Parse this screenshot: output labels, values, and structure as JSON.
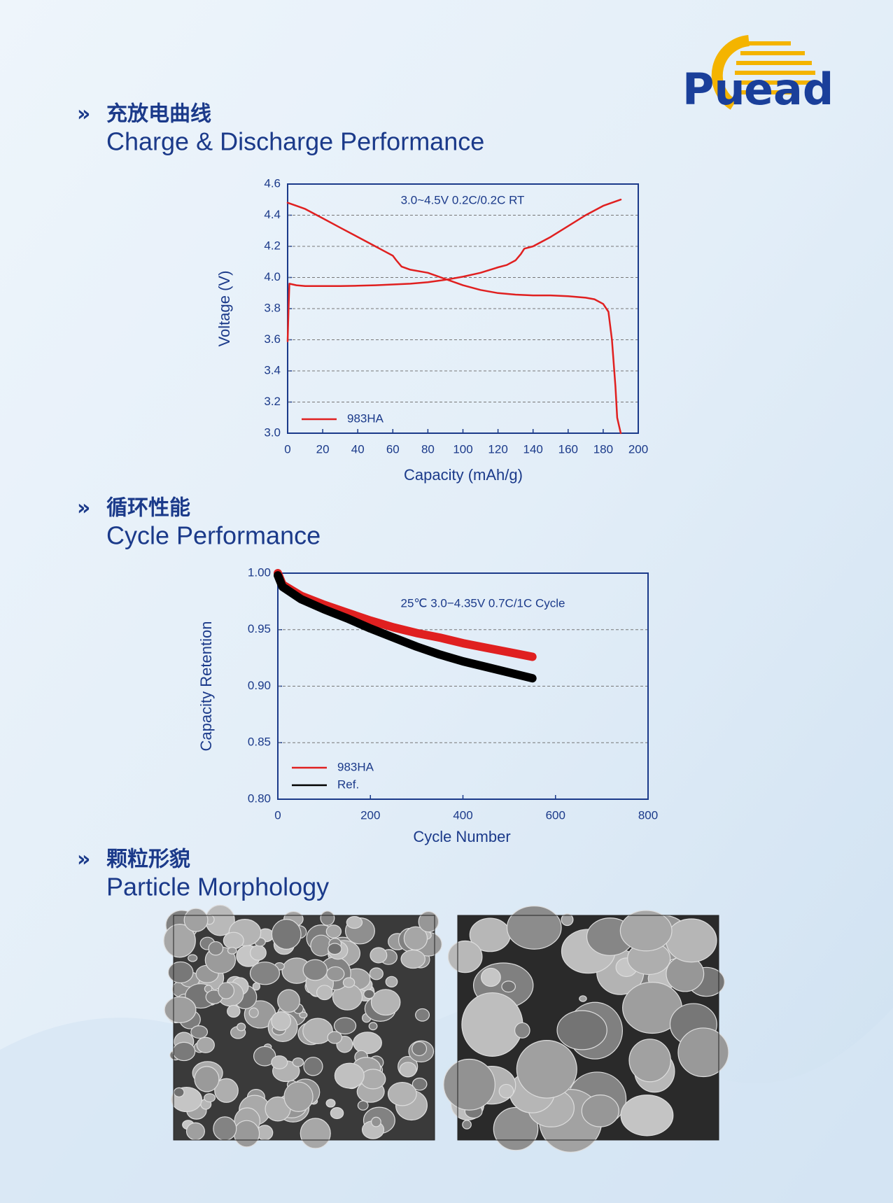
{
  "logo": {
    "text_left": "Pu",
    "text_right": "ead"
  },
  "sections": [
    {
      "title_cn": "充放电曲线",
      "title_en": "Charge & Discharge Performance"
    },
    {
      "title_cn": "循环性能",
      "title_en": "Cycle Performance"
    },
    {
      "title_cn": "颗粒形貌",
      "title_en": "Particle Morphology"
    }
  ],
  "chart_data": [
    {
      "type": "line",
      "annotation": "3.0~4.5V  0.2C/0.2C  RT",
      "x_label": "Capacity (mAh/g)",
      "y_label": "Voltage (V)",
      "xlim": [
        0,
        200
      ],
      "xticks": [
        0,
        20,
        40,
        60,
        80,
        100,
        120,
        140,
        160,
        180,
        200
      ],
      "ylim": [
        3.0,
        4.6
      ],
      "yticks": [
        {
          "value": 3,
          "label": "3.0"
        },
        3.2,
        3.4,
        3.6,
        3.8,
        {
          "value": 4,
          "label": "4.0"
        },
        4.2,
        4.4,
        4.6
      ],
      "grid": true,
      "legend": "lower left",
      "x": [
        0,
        0.5,
        1,
        5,
        10,
        20,
        30,
        40,
        50,
        60,
        70,
        80,
        90,
        100,
        110,
        120,
        125,
        130,
        133,
        135,
        140,
        150,
        160,
        170,
        180,
        190,
        null,
        0,
        5,
        10,
        20,
        30,
        40,
        50,
        55,
        60,
        62,
        65,
        70,
        80,
        90,
        100,
        110,
        120,
        130,
        140,
        150,
        160,
        170,
        175,
        180,
        183,
        185,
        187,
        188,
        189,
        190
      ],
      "series": [
        {
          "name": "983HA",
          "color": "#e02020",
          "values": [
            3.59,
            3.8,
            3.96,
            3.95,
            3.945,
            3.945,
            3.945,
            3.947,
            3.95,
            3.955,
            3.96,
            3.97,
            3.985,
            4.005,
            4.03,
            4.065,
            4.08,
            4.11,
            4.15,
            4.185,
            4.2,
            4.26,
            4.33,
            4.4,
            4.46,
            4.5,
            null,
            4.48,
            4.46,
            4.44,
            4.38,
            4.32,
            4.26,
            4.2,
            4.17,
            4.14,
            4.11,
            4.07,
            4.05,
            4.03,
            3.99,
            3.95,
            3.92,
            3.9,
            3.89,
            3.885,
            3.885,
            3.88,
            3.87,
            3.86,
            3.83,
            3.78,
            3.6,
            3.3,
            3.1,
            3.05,
            3.0
          ]
        }
      ]
    },
    {
      "type": "line",
      "annotation": "25℃  3.0−4.35V 0.7C/1C  Cycle",
      "x_label": "Cycle Number",
      "y_label": "Capacity Retention",
      "xlim": [
        0,
        800
      ],
      "xticks": [
        0,
        200,
        400,
        600,
        800
      ],
      "ylim": [
        0.8,
        1.0
      ],
      "yticks": [
        {
          "value": 0.8,
          "label": "0.80"
        },
        0.85,
        {
          "value": 0.9,
          "label": "0.90"
        },
        0.95,
        {
          "value": 1,
          "label": "1.00"
        }
      ],
      "grid": true,
      "legend": "lower left",
      "x": [
        0,
        10,
        50,
        100,
        150,
        200,
        250,
        300,
        350,
        400,
        450,
        500,
        550
      ],
      "series": [
        {
          "name": "983HA",
          "color": "#e02020",
          "values": [
            1.0,
            0.99,
            0.98,
            0.972,
            0.965,
            0.958,
            0.952,
            0.947,
            0.943,
            0.938,
            0.934,
            0.93,
            0.926
          ]
        },
        {
          "name": "Ref.",
          "color": "#000000",
          "values": [
            0.998,
            0.988,
            0.977,
            0.968,
            0.96,
            0.951,
            0.943,
            0.935,
            0.928,
            0.922,
            0.917,
            0.912,
            0.907
          ]
        }
      ]
    }
  ]
}
